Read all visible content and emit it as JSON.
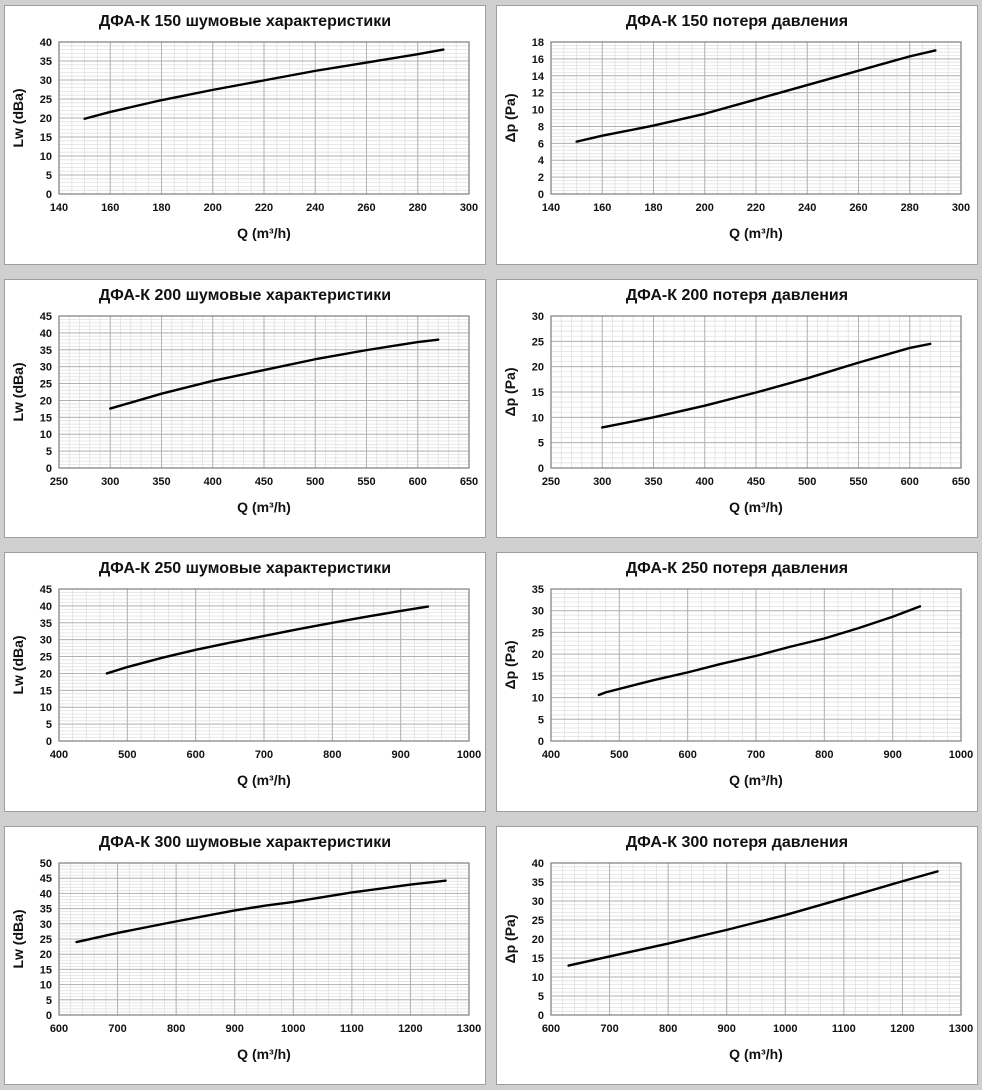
{
  "page": {
    "background": "#cfcfcf",
    "panel_background": "#ffffff",
    "panel_border": "#9e9e9e",
    "grid_minor_color": "#e0e0e0",
    "grid_major_color": "#b2b2b2",
    "frame_color": "#7d7d7d",
    "curve_color": "#000000",
    "text_color": "#111111"
  },
  "chart_data": [
    {
      "type": "line",
      "title": "ДФА-К 150 шумовые характеристики",
      "xlabel": "Q (m³/h)",
      "ylabel": "Lw (dBa)",
      "xlim": [
        140,
        300
      ],
      "xstep": 20,
      "xminor": 5,
      "ylim": [
        0,
        40
      ],
      "ystep": 5,
      "yminor": 1,
      "grid": true,
      "legend": "none",
      "points": [
        [
          150,
          19.8
        ],
        [
          160,
          21.6
        ],
        [
          180,
          24.7
        ],
        [
          200,
          27.4
        ],
        [
          220,
          29.9
        ],
        [
          240,
          32.4
        ],
        [
          260,
          34.6
        ],
        [
          280,
          36.8
        ],
        [
          290,
          38
        ]
      ]
    },
    {
      "type": "line",
      "title": "ДФА-К 150 потеря давления",
      "xlabel": "Q (m³/h)",
      "ylabel": "Δp (Pa)",
      "xlim": [
        140,
        300
      ],
      "xstep": 20,
      "xminor": 5,
      "ylim": [
        0,
        18
      ],
      "ystep": 2,
      "yminor": 0.4,
      "grid": true,
      "legend": "none",
      "points": [
        [
          150,
          6.2
        ],
        [
          160,
          6.9
        ],
        [
          180,
          8.1
        ],
        [
          200,
          9.5
        ],
        [
          220,
          11.2
        ],
        [
          240,
          12.9
        ],
        [
          260,
          14.6
        ],
        [
          280,
          16.3
        ],
        [
          290,
          17
        ]
      ]
    },
    {
      "type": "line",
      "title": "ДФА-К 200 шумовые характеристики",
      "xlabel": "Q (m³/h)",
      "ylabel": "Lw (dBa)",
      "xlim": [
        250,
        650
      ],
      "xstep": 50,
      "xminor": 10,
      "ylim": [
        0,
        45
      ],
      "ystep": 5,
      "yminor": 1,
      "grid": true,
      "legend": "none",
      "points": [
        [
          300,
          17.6
        ],
        [
          350,
          22
        ],
        [
          400,
          25.8
        ],
        [
          450,
          29
        ],
        [
          500,
          32.2
        ],
        [
          550,
          34.9
        ],
        [
          600,
          37.3
        ],
        [
          620,
          38
        ]
      ]
    },
    {
      "type": "line",
      "title": "ДФА-К 200 потеря давления",
      "xlabel": "Q (m³/h)",
      "ylabel": "Δp (Pa)",
      "xlim": [
        250,
        650
      ],
      "xstep": 50,
      "xminor": 10,
      "ylim": [
        0,
        30
      ],
      "ystep": 5,
      "yminor": 1,
      "grid": true,
      "legend": "none",
      "points": [
        [
          300,
          8
        ],
        [
          350,
          10
        ],
        [
          400,
          12.3
        ],
        [
          450,
          14.9
        ],
        [
          500,
          17.7
        ],
        [
          550,
          20.8
        ],
        [
          600,
          23.7
        ],
        [
          620,
          24.5
        ]
      ]
    },
    {
      "type": "line",
      "title": "ДФА-К 250 шумовые характеристики",
      "xlabel": "Q (m³/h)",
      "ylabel": "Lw (dBa)",
      "xlim": [
        400,
        1000
      ],
      "xstep": 100,
      "xminor": 20,
      "ylim": [
        0,
        45
      ],
      "ystep": 5,
      "yminor": 1,
      "grid": true,
      "legend": "none",
      "points": [
        [
          470,
          20
        ],
        [
          500,
          21.9
        ],
        [
          550,
          24.6
        ],
        [
          600,
          27
        ],
        [
          650,
          29.1
        ],
        [
          700,
          31.1
        ],
        [
          750,
          33.1
        ],
        [
          800,
          35
        ],
        [
          850,
          36.8
        ],
        [
          900,
          38.5
        ],
        [
          940,
          39.8
        ]
      ]
    },
    {
      "type": "line",
      "title": "ДФА-К 250 потеря давления",
      "xlabel": "Q (m³/h)",
      "ylabel": "Δp (Pa)",
      "xlim": [
        400,
        1000
      ],
      "xstep": 100,
      "xminor": 20,
      "ylim": [
        0,
        35
      ],
      "ystep": 5,
      "yminor": 1,
      "grid": true,
      "legend": "none",
      "points": [
        [
          470,
          10.6
        ],
        [
          480,
          11.2
        ],
        [
          550,
          14
        ],
        [
          600,
          15.8
        ],
        [
          650,
          17.8
        ],
        [
          700,
          19.6
        ],
        [
          750,
          21.7
        ],
        [
          800,
          23.6
        ],
        [
          850,
          26
        ],
        [
          900,
          28.6
        ],
        [
          940,
          31
        ]
      ]
    },
    {
      "type": "line",
      "title": "ДФА-К 300 шумовые характеристики",
      "xlabel": "Q (m³/h)",
      "ylabel": "Lw (dBa)",
      "xlim": [
        600,
        1300
      ],
      "xstep": 100,
      "xminor": 20,
      "ylim": [
        0,
        50
      ],
      "ystep": 5,
      "yminor": 1,
      "grid": true,
      "legend": "none",
      "points": [
        [
          630,
          24
        ],
        [
          700,
          27
        ],
        [
          800,
          30.8
        ],
        [
          900,
          34.4
        ],
        [
          950,
          35.9
        ],
        [
          1000,
          37.2
        ],
        [
          1100,
          40.3
        ],
        [
          1200,
          42.9
        ],
        [
          1260,
          44.2
        ]
      ]
    },
    {
      "type": "line",
      "title": "ДФА-К 300 потеря давления",
      "xlabel": "Q (m³/h)",
      "ylabel": "Δp (Pa)",
      "xlim": [
        600,
        1300
      ],
      "xstep": 100,
      "xminor": 20,
      "ylim": [
        0,
        40
      ],
      "ystep": 5,
      "yminor": 1,
      "grid": true,
      "legend": "none",
      "points": [
        [
          630,
          13
        ],
        [
          700,
          15.4
        ],
        [
          800,
          18.8
        ],
        [
          900,
          22.4
        ],
        [
          1000,
          26.3
        ],
        [
          1100,
          30.7
        ],
        [
          1200,
          35.2
        ],
        [
          1260,
          37.8
        ]
      ]
    }
  ]
}
